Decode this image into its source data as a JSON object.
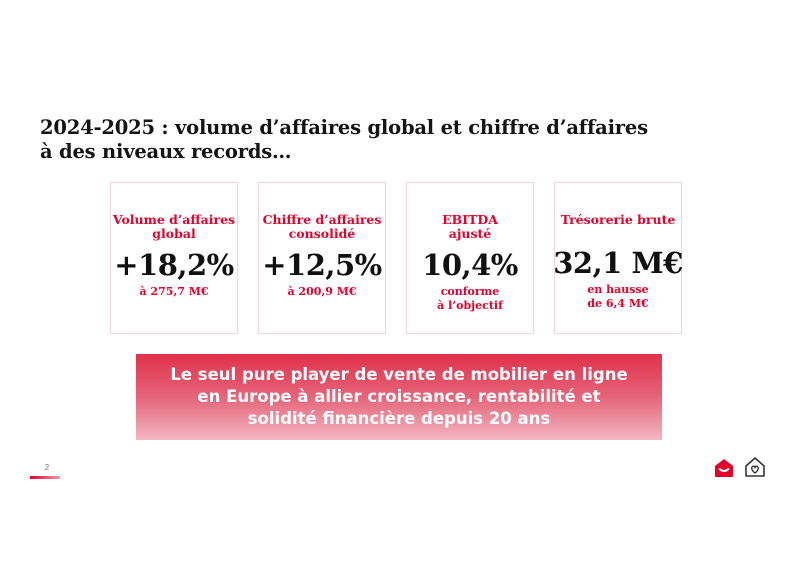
{
  "title": {
    "line1": "2024-2025 : volume d’affaires global et chiffre d’affaires",
    "line2": "à des niveaux records…"
  },
  "kpis": [
    {
      "label_lines": [
        "Volume d’affaires",
        "global"
      ],
      "value": "+18,2%",
      "sub_lines": [
        "à 275,7 M€"
      ]
    },
    {
      "label_lines": [
        "Chiffre d’affaires",
        "consolidé"
      ],
      "value": "+12,5%",
      "sub_lines": [
        "à 200,9 M€"
      ]
    },
    {
      "label_lines": [
        "EBITDA",
        "ajusté"
      ],
      "value": "10,4%",
      "sub_lines": [
        "conforme",
        "à l’objectif"
      ]
    },
    {
      "label_lines": [
        "Trésorerie brute"
      ],
      "value": "32,1 M€",
      "sub_lines": [
        "en hausse",
        "de 6,4 M€"
      ]
    }
  ],
  "banner": {
    "lines": [
      "Le seul pure player de vente de mobilier en ligne",
      "en Europe à allier croissance, rentabilité et",
      "solidité financière depuis 20 ans"
    ]
  },
  "footer": {
    "page_number": "2"
  },
  "colors": {
    "accent": "#e4002b",
    "text": "#141414",
    "card_border": "#f1d5da"
  },
  "icons": [
    "brand-logo-icon",
    "house-heart-logo-icon"
  ]
}
